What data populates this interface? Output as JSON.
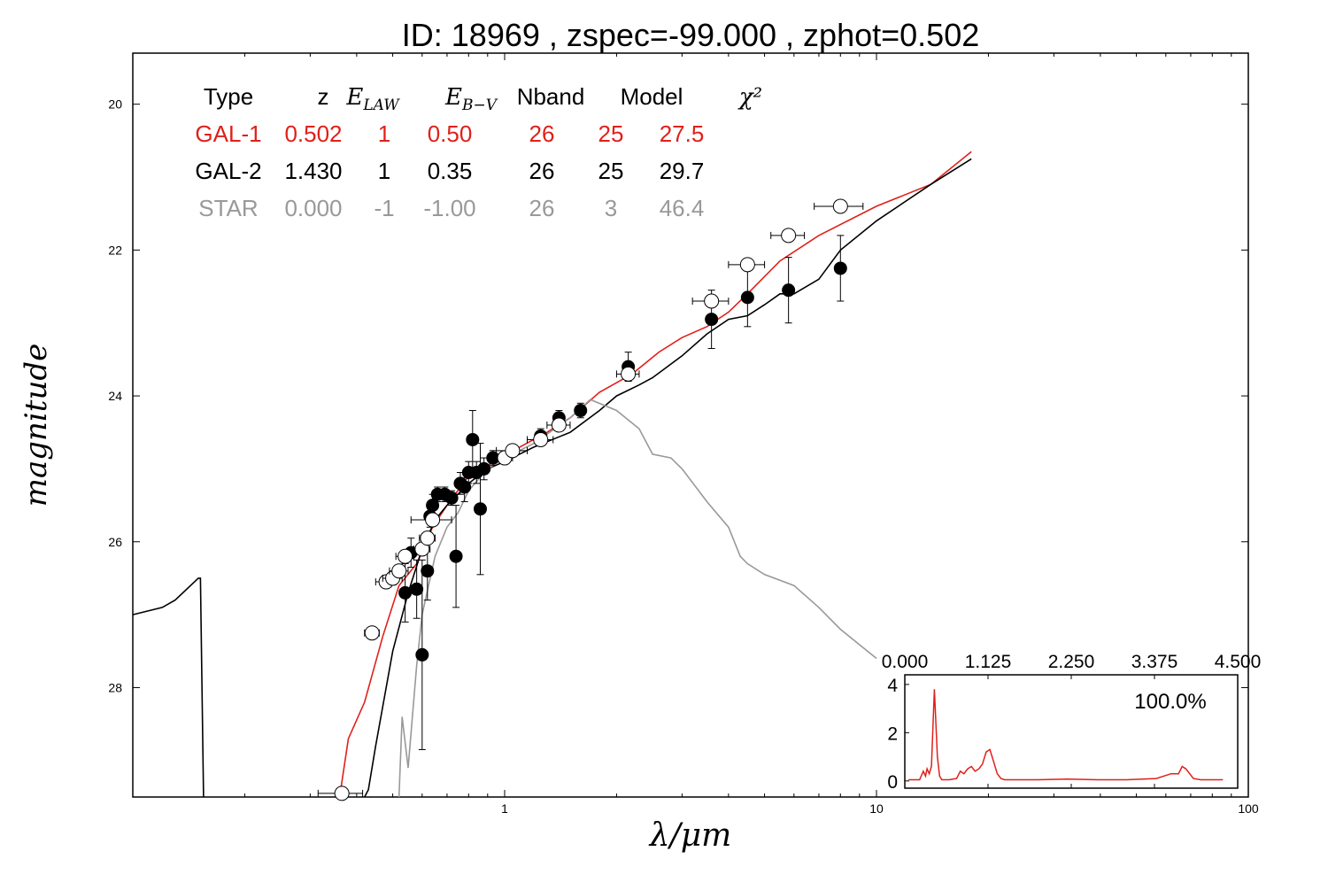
{
  "chart_data": {
    "type": "scatter",
    "title": "ID:  18969 , zspec=-99.000 , zphot=0.502",
    "xlabel": "λ/μm",
    "ylabel": "magnitude",
    "x_scale": "log",
    "xlim": [
      0.1,
      100
    ],
    "ylim": [
      29.5,
      19.3
    ],
    "y_inverted": true,
    "x_ticks": [
      1,
      10,
      100
    ],
    "x_tick_labels": [
      "1",
      "10",
      "100"
    ],
    "y_ticks": [
      20,
      22,
      24,
      26,
      28
    ],
    "y_tick_labels": [
      "20",
      "22",
      "24",
      "26",
      "28"
    ],
    "legend_table": {
      "headers": [
        "Type",
        "z",
        "E_LAW",
        "E_B−V",
        "Nband",
        "Model",
        "χ²"
      ],
      "rows": [
        {
          "cells": [
            "GAL-1",
            "0.502",
            "1",
            "0.50",
            "26",
            "25",
            "27.5"
          ],
          "color": "#e0201a"
        },
        {
          "cells": [
            "GAL-2",
            "1.430",
            "1",
            "0.35",
            "26",
            "25",
            "29.7"
          ],
          "color": "#000000"
        },
        {
          "cells": [
            "STAR",
            "0.000",
            "-1",
            "-1.00",
            "26",
            "3",
            "46.4"
          ],
          "color": "#999999"
        }
      ]
    },
    "series": [
      {
        "name": "GAL-1",
        "kind": "line",
        "color": "#e0201a",
        "x": [
          0.36,
          0.38,
          0.42,
          0.47,
          0.52,
          0.58,
          0.64,
          0.7,
          0.8,
          0.9,
          0.98,
          1.0,
          1.1,
          1.3,
          1.5,
          1.8,
          2.2,
          2.6,
          3.0,
          3.5,
          4.0,
          4.5,
          5.5,
          7.0,
          10.0,
          14.0,
          18.0
        ],
        "y": [
          29.5,
          28.7,
          28.2,
          27.3,
          26.6,
          26.3,
          25.8,
          25.5,
          25.1,
          24.95,
          24.85,
          24.9,
          24.7,
          24.5,
          24.3,
          23.95,
          23.7,
          23.4,
          23.2,
          23.05,
          22.85,
          22.6,
          22.15,
          21.8,
          21.4,
          21.1,
          20.65
        ]
      },
      {
        "name": "GAL-2",
        "kind": "line",
        "color": "#000000",
        "x": [
          0.42,
          0.43,
          0.45,
          0.5,
          0.55,
          0.6,
          0.65,
          0.7,
          0.8,
          0.9,
          1.0,
          1.2,
          1.5,
          1.8,
          2.0,
          2.3,
          2.5,
          3.0,
          3.5,
          4.0,
          4.5,
          5.0,
          5.5,
          6.0,
          7.0,
          8.0,
          10.0,
          14.0,
          18.0
        ],
        "y": [
          29.5,
          29.4,
          28.8,
          27.5,
          26.7,
          26.1,
          25.7,
          25.5,
          25.2,
          25.0,
          24.9,
          24.7,
          24.5,
          24.2,
          24.0,
          23.85,
          23.75,
          23.45,
          23.15,
          22.95,
          22.9,
          22.75,
          22.6,
          22.6,
          22.4,
          22.0,
          21.6,
          21.1,
          20.75
        ]
      },
      {
        "name": "STAR",
        "kind": "line",
        "color": "#999999",
        "x": [
          0.52,
          0.53,
          0.55,
          0.58,
          0.6,
          0.65,
          0.7,
          0.75,
          0.8,
          0.9,
          1.0,
          1.2,
          1.5,
          1.7,
          2.0,
          2.3,
          2.5,
          2.8,
          3.0,
          3.5,
          4.0,
          4.3,
          4.5,
          5.0,
          6.0,
          7.0,
          8.0,
          10.0
        ],
        "y": [
          29.5,
          28.4,
          29.1,
          27.7,
          27.0,
          26.2,
          25.8,
          25.6,
          25.3,
          25.0,
          24.85,
          24.65,
          24.3,
          24.05,
          24.2,
          24.45,
          24.8,
          24.85,
          25.0,
          25.45,
          25.8,
          26.2,
          26.3,
          26.45,
          26.6,
          26.9,
          27.2,
          27.6
        ]
      },
      {
        "name": "",
        "kind": "line",
        "color": "#000000",
        "x": [
          0.1,
          0.12,
          0.13,
          0.15,
          0.152,
          0.155
        ],
        "y": [
          27.0,
          26.9,
          26.8,
          26.5,
          26.5,
          29.5
        ]
      },
      {
        "name": "",
        "kind": "points",
        "marker": "filled-circle",
        "color": "#000000",
        "points": [
          {
            "x": 0.54,
            "y": 26.7,
            "yerr": 0.4
          },
          {
            "x": 0.56,
            "y": 26.15,
            "yerr": 0.2
          },
          {
            "x": 0.58,
            "y": 26.65,
            "yerr": 0.4
          },
          {
            "x": 0.6,
            "y": 27.55,
            "yerr": 1.3
          },
          {
            "x": 0.62,
            "y": 26.4,
            "yerr": 0.4
          },
          {
            "x": 0.63,
            "y": 25.65,
            "yerr": 0.15
          },
          {
            "x": 0.64,
            "y": 25.5,
            "yerr": 0.15
          },
          {
            "x": 0.66,
            "y": 25.35,
            "yerr": 0.1
          },
          {
            "x": 0.69,
            "y": 25.35,
            "yerr": 0.1
          },
          {
            "x": 0.72,
            "y": 25.4,
            "yerr": 0.1
          },
          {
            "x": 0.74,
            "y": 26.2,
            "yerr": 0.7
          },
          {
            "x": 0.76,
            "y": 25.2,
            "yerr": 0.15
          },
          {
            "x": 0.78,
            "y": 25.25,
            "yerr": 0.2
          },
          {
            "x": 0.8,
            "y": 25.05,
            "yerr": 0.15
          },
          {
            "x": 0.82,
            "y": 24.6,
            "yerr": 0.4
          },
          {
            "x": 0.84,
            "y": 25.05,
            "yerr": 0.15
          },
          {
            "x": 0.86,
            "y": 25.55,
            "yerr": 0.9
          },
          {
            "x": 0.88,
            "y": 25.0,
            "yerr": 0.15
          },
          {
            "x": 0.93,
            "y": 24.85,
            "yerr": 0.1
          },
          {
            "x": 1.25,
            "y": 24.55,
            "yerr": 0.1
          },
          {
            "x": 1.4,
            "y": 24.3,
            "yerr": 0.1
          },
          {
            "x": 1.6,
            "y": 24.2,
            "yerr": 0.1
          },
          {
            "x": 2.15,
            "y": 23.6,
            "yerr": 0.2
          },
          {
            "x": 3.6,
            "y": 22.95,
            "yerr": 0.4
          },
          {
            "x": 4.5,
            "y": 22.65,
            "yerr": 0.4
          },
          {
            "x": 5.8,
            "y": 22.55,
            "yerr": 0.45
          },
          {
            "x": 8.0,
            "y": 22.25,
            "yerr": 0.45
          }
        ]
      },
      {
        "name": "",
        "kind": "points",
        "marker": "open-circle",
        "color": "#000000",
        "points": [
          {
            "x": 0.365,
            "y": 29.45,
            "xerr": 0.05
          },
          {
            "x": 0.44,
            "y": 27.25,
            "xerr": 0.02
          },
          {
            "x": 0.48,
            "y": 26.55,
            "xerr": 0.03
          },
          {
            "x": 0.5,
            "y": 26.5,
            "xerr": 0.03
          },
          {
            "x": 0.52,
            "y": 26.4,
            "xerr": 0.03
          },
          {
            "x": 0.54,
            "y": 26.2,
            "xerr": 0.03
          },
          {
            "x": 0.6,
            "y": 26.1,
            "xerr": 0.03
          },
          {
            "x": 0.62,
            "y": 25.95,
            "xerr": 0.03
          },
          {
            "x": 0.64,
            "y": 25.7,
            "xerr": 0.08
          },
          {
            "x": 1.0,
            "y": 24.85,
            "xerr": 0.05
          },
          {
            "x": 1.05,
            "y": 24.75,
            "xerr": 0.1
          },
          {
            "x": 1.25,
            "y": 24.6,
            "xerr": 0.1
          },
          {
            "x": 1.4,
            "y": 24.4,
            "xerr": 0.1
          },
          {
            "x": 2.15,
            "y": 23.7,
            "xerr": 0.15
          },
          {
            "x": 3.6,
            "y": 22.7,
            "xerr": 0.4
          },
          {
            "x": 4.5,
            "y": 22.2,
            "xerr": 0.5
          },
          {
            "x": 5.8,
            "y": 21.8,
            "xerr": 0.6
          },
          {
            "x": 8.0,
            "y": 21.4,
            "xerr": 1.2
          }
        ]
      }
    ],
    "inset": {
      "type": "line",
      "color": "#e0201a",
      "percent_label": "100.0%",
      "xlim": [
        0,
        4.5
      ],
      "ylim": [
        -0.3,
        4.4
      ],
      "x_ticks": [
        0,
        1.125,
        2.25,
        3.375,
        4.5
      ],
      "x_tick_labels": [
        "0.000",
        "1.125",
        "2.250",
        "3.375",
        "4.500"
      ],
      "y_ticks": [
        0,
        2,
        4
      ],
      "y_tick_labels": [
        "0",
        "2",
        "4"
      ],
      "x": [
        0.05,
        0.2,
        0.25,
        0.28,
        0.3,
        0.33,
        0.36,
        0.4,
        0.44,
        0.47,
        0.5,
        0.52,
        0.55,
        0.6,
        0.7,
        0.75,
        0.8,
        0.85,
        0.9,
        0.95,
        1.0,
        1.05,
        1.1,
        1.15,
        1.2,
        1.25,
        1.3,
        1.35,
        1.4,
        1.5,
        1.8,
        2.2,
        2.6,
        3.0,
        3.4,
        3.6,
        3.7,
        3.75,
        3.8,
        3.9,
        4.0,
        4.3
      ],
      "y": [
        0.05,
        0.05,
        0.4,
        0.2,
        0.5,
        0.3,
        0.6,
        3.8,
        1.0,
        0.2,
        0.05,
        0.05,
        0.05,
        0.05,
        0.1,
        0.4,
        0.3,
        0.5,
        0.6,
        0.4,
        0.5,
        0.7,
        1.2,
        1.3,
        0.8,
        0.3,
        0.1,
        0.05,
        0.05,
        0.05,
        0.05,
        0.08,
        0.05,
        0.05,
        0.1,
        0.3,
        0.3,
        0.6,
        0.5,
        0.1,
        0.05,
        0.05
      ]
    }
  }
}
